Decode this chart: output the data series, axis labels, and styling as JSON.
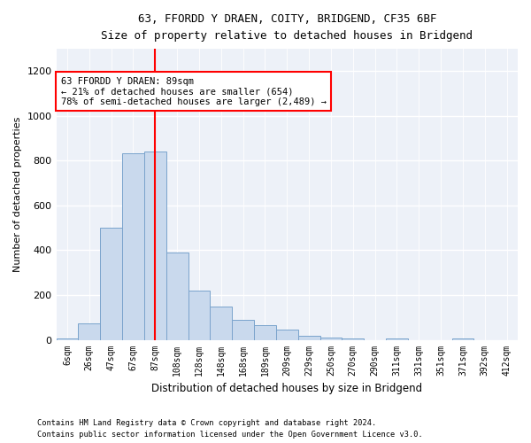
{
  "title1": "63, FFORDD Y DRAEN, COITY, BRIDGEND, CF35 6BF",
  "title2": "Size of property relative to detached houses in Bridgend",
  "xlabel": "Distribution of detached houses by size in Bridgend",
  "ylabel": "Number of detached properties",
  "bar_labels": [
    "6sqm",
    "26sqm",
    "47sqm",
    "67sqm",
    "87sqm",
    "108sqm",
    "128sqm",
    "148sqm",
    "168sqm",
    "189sqm",
    "209sqm",
    "229sqm",
    "250sqm",
    "270sqm",
    "290sqm",
    "311sqm",
    "331sqm",
    "351sqm",
    "371sqm",
    "392sqm",
    "412sqm"
  ],
  "bar_values": [
    5,
    75,
    500,
    835,
    840,
    390,
    220,
    150,
    90,
    65,
    45,
    20,
    10,
    5,
    0,
    5,
    0,
    0,
    5,
    0,
    0
  ],
  "bar_color": "#c9d9ed",
  "bar_edgecolor": "#7aa3cc",
  "vline_x_index": 4,
  "vline_color": "red",
  "annotation_text": "63 FFORDD Y DRAEN: 89sqm\n← 21% of detached houses are smaller (654)\n78% of semi-detached houses are larger (2,489) →",
  "annotation_box_color": "white",
  "annotation_box_edgecolor": "red",
  "ylim": [
    0,
    1300
  ],
  "yticks": [
    0,
    200,
    400,
    600,
    800,
    1000,
    1200
  ],
  "footnote1": "Contains HM Land Registry data © Crown copyright and database right 2024.",
  "footnote2": "Contains public sector information licensed under the Open Government Licence v3.0.",
  "background_color": "#edf1f8"
}
